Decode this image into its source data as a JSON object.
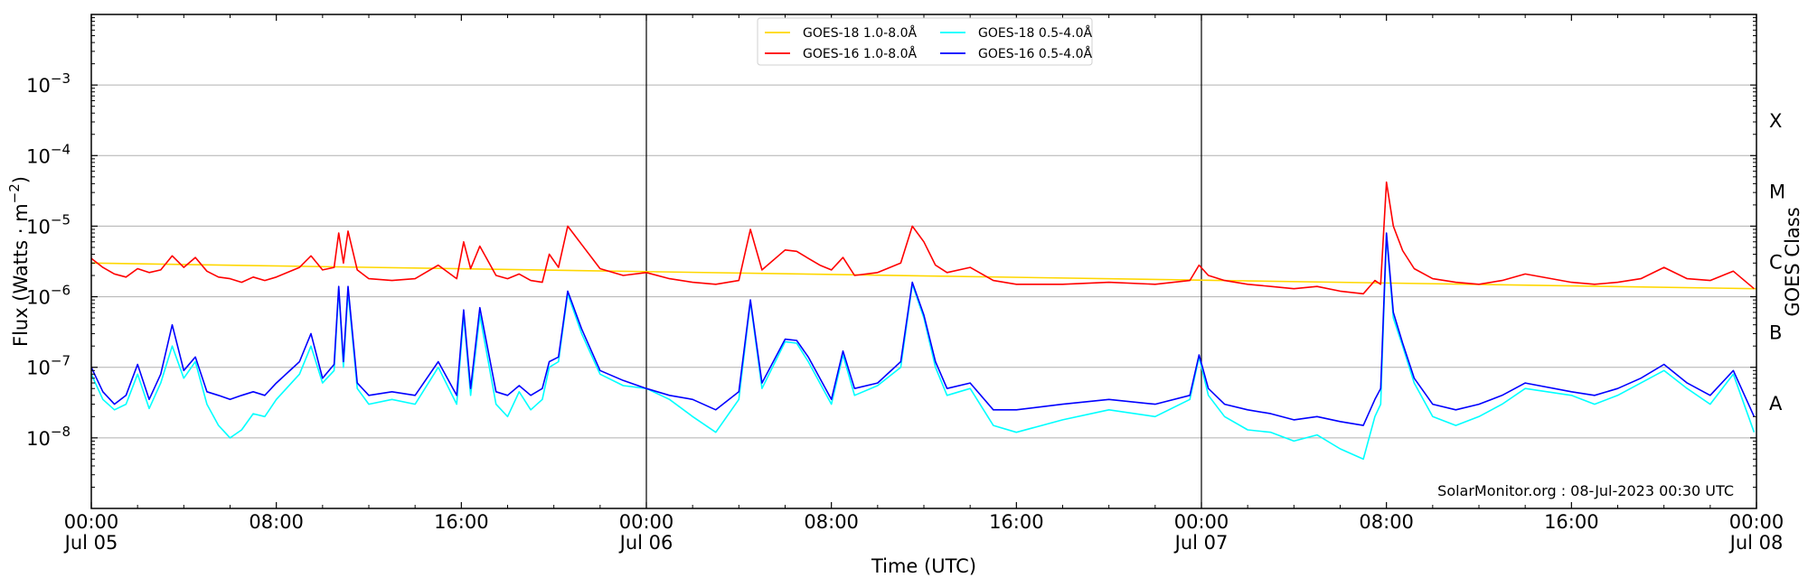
{
  "chart_data": {
    "type": "line",
    "title": "",
    "xlabel": "Time (UTC)",
    "ylabel": "Flux (Watts · m",
    "ylabel_sup": "−2",
    "ylabel_close": ")",
    "y2label": "GOES Class",
    "yscale": "log",
    "xlim": [
      0,
      72
    ],
    "ylim": [
      1e-09,
      0.01
    ],
    "grid": "horizontal",
    "legend_position": "top-center",
    "credit": "SolarMonitor.org : 08-Jul-2023 00:30 UTC",
    "x_ticks": [
      {
        "value": 0,
        "line1": "00:00",
        "line2": "Jul 05"
      },
      {
        "value": 8,
        "line1": "08:00",
        "line2": ""
      },
      {
        "value": 16,
        "line1": "16:00",
        "line2": ""
      },
      {
        "value": 24,
        "line1": "00:00",
        "line2": "Jul 06"
      },
      {
        "value": 32,
        "line1": "08:00",
        "line2": ""
      },
      {
        "value": 40,
        "line1": "16:00",
        "line2": ""
      },
      {
        "value": 48,
        "line1": "00:00",
        "line2": "Jul 07"
      },
      {
        "value": 56,
        "line1": "08:00",
        "line2": ""
      },
      {
        "value": 64,
        "line1": "16:00",
        "line2": ""
      },
      {
        "value": 72,
        "line1": "00:00",
        "line2": "Jul 08"
      }
    ],
    "y_ticks": [
      {
        "value": 1e-08,
        "base": "10",
        "exp": "−8"
      },
      {
        "value": 1e-07,
        "base": "10",
        "exp": "−7"
      },
      {
        "value": 1e-06,
        "base": "10",
        "exp": "−6"
      },
      {
        "value": 1e-05,
        "base": "10",
        "exp": "−5"
      },
      {
        "value": 0.0001,
        "base": "10",
        "exp": "−4"
      },
      {
        "value": 0.001,
        "base": "10",
        "exp": "−3"
      }
    ],
    "day_lines": [
      24,
      48
    ],
    "goes_classes": [
      {
        "label": "A",
        "value": 3.16e-08
      },
      {
        "label": "B",
        "value": 3.16e-07
      },
      {
        "label": "C",
        "value": 3.16e-06
      },
      {
        "label": "M",
        "value": 3.16e-05
      },
      {
        "label": "X",
        "value": 0.000316
      }
    ],
    "series": [
      {
        "name": "GOES-18 1.0-8.0Å",
        "color": "#ffd700",
        "x": [
          0,
          72
        ],
        "y": [
          3e-06,
          1.3e-06
        ]
      },
      {
        "name": "GOES-16 1.0-8.0Å",
        "color": "#ff0000",
        "x": [
          0,
          0.5,
          1,
          1.5,
          2,
          2.5,
          3,
          3.5,
          4,
          4.5,
          5,
          5.5,
          6,
          6.5,
          7,
          7.5,
          8,
          9,
          9.5,
          10,
          10.5,
          10.7,
          10.9,
          11.1,
          11.5,
          12,
          13,
          14,
          15,
          15.8,
          16.1,
          16.4,
          16.8,
          17.5,
          18,
          18.5,
          19,
          19.5,
          19.8,
          20.2,
          20.6,
          21.2,
          22,
          23,
          24,
          25,
          26,
          27,
          28,
          28.5,
          29,
          30,
          30.5,
          31,
          31.5,
          32,
          32.5,
          33,
          34,
          35,
          35.5,
          36,
          36.5,
          37,
          38,
          39,
          40,
          42,
          44,
          46,
          47.5,
          47.9,
          48.3,
          49,
          50,
          51,
          52,
          53,
          54,
          55,
          55.5,
          55.75,
          56,
          56.3,
          56.7,
          57.2,
          58,
          59,
          60,
          61,
          62,
          64,
          65,
          66,
          67,
          68,
          69,
          70,
          71,
          71.9
        ],
        "y": [
          3.5e-06,
          2.6e-06,
          2.1e-06,
          1.9e-06,
          2.5e-06,
          2.2e-06,
          2.4e-06,
          3.8e-06,
          2.6e-06,
          3.6e-06,
          2.3e-06,
          1.9e-06,
          1.8e-06,
          1.6e-06,
          1.9e-06,
          1.7e-06,
          1.9e-06,
          2.6e-06,
          3.8e-06,
          2.4e-06,
          2.6e-06,
          8e-06,
          3e-06,
          8.5e-06,
          2.4e-06,
          1.8e-06,
          1.7e-06,
          1.8e-06,
          2.8e-06,
          1.8e-06,
          6e-06,
          2.5e-06,
          5.2e-06,
          2e-06,
          1.8e-06,
          2.1e-06,
          1.7e-06,
          1.6e-06,
          4e-06,
          2.6e-06,
          1e-05,
          5.5e-06,
          2.5e-06,
          2e-06,
          2.2e-06,
          1.8e-06,
          1.6e-06,
          1.5e-06,
          1.7e-06,
          9e-06,
          2.4e-06,
          4.6e-06,
          4.4e-06,
          3.5e-06,
          2.8e-06,
          2.4e-06,
          3.6e-06,
          2e-06,
          2.2e-06,
          3e-06,
          1e-05,
          6e-06,
          2.8e-06,
          2.2e-06,
          2.6e-06,
          1.7e-06,
          1.5e-06,
          1.5e-06,
          1.6e-06,
          1.5e-06,
          1.7e-06,
          2.8e-06,
          2e-06,
          1.7e-06,
          1.5e-06,
          1.4e-06,
          1.3e-06,
          1.4e-06,
          1.2e-06,
          1.1e-06,
          1.7e-06,
          1.5e-06,
          4.2e-05,
          1e-05,
          4.5e-06,
          2.5e-06,
          1.8e-06,
          1.6e-06,
          1.5e-06,
          1.7e-06,
          2.1e-06,
          1.6e-06,
          1.5e-06,
          1.6e-06,
          1.8e-06,
          2.6e-06,
          1.8e-06,
          1.7e-06,
          2.3e-06,
          1.3e-06
        ]
      },
      {
        "name": "GOES-18 0.5-4.0Å",
        "color": "#00ffff",
        "x": [
          0,
          0.5,
          1,
          1.5,
          2,
          2.5,
          3,
          3.5,
          4,
          4.5,
          5,
          5.5,
          6,
          6.5,
          7,
          7.5,
          8,
          9,
          9.5,
          10,
          10.5,
          10.7,
          10.9,
          11.1,
          11.5,
          12,
          13,
          14,
          15,
          15.8,
          16.1,
          16.4,
          16.8,
          17.5,
          18,
          18.5,
          19,
          19.5,
          19.8,
          20.2,
          20.6,
          21.2,
          22,
          23,
          24,
          25,
          26,
          27,
          28,
          28.5,
          29,
          30,
          30.5,
          31,
          31.5,
          32,
          32.5,
          33,
          34,
          35,
          35.5,
          36,
          36.5,
          37,
          38,
          39,
          40,
          42,
          44,
          46,
          47.5,
          47.9,
          48.3,
          49,
          50,
          51,
          52,
          53,
          54,
          55,
          55.5,
          55.75,
          56,
          56.3,
          56.7,
          57.2,
          58,
          59,
          60,
          61,
          62,
          64,
          65,
          66,
          67,
          68,
          69,
          70,
          71,
          71.9
        ],
        "y": [
          8e-08,
          3.5e-08,
          2.5e-08,
          3e-08,
          8e-08,
          2.6e-08,
          6e-08,
          2e-07,
          7e-08,
          1.2e-07,
          3e-08,
          1.5e-08,
          1e-08,
          1.3e-08,
          2.2e-08,
          2e-08,
          3.5e-08,
          8e-08,
          2e-07,
          6e-08,
          9e-08,
          1.3e-06,
          1e-07,
          1.2e-06,
          5e-08,
          3e-08,
          3.5e-08,
          3e-08,
          1e-07,
          3e-08,
          5.5e-07,
          4e-08,
          5.5e-07,
          3e-08,
          2e-08,
          4.5e-08,
          2.5e-08,
          3.5e-08,
          1e-07,
          1.2e-07,
          1.1e-06,
          3e-07,
          8e-08,
          5.5e-08,
          5e-08,
          3.5e-08,
          2e-08,
          1.2e-08,
          3.5e-08,
          8.5e-07,
          5e-08,
          2.3e-07,
          2.2e-07,
          1.2e-07,
          6e-08,
          3e-08,
          1.5e-07,
          4e-08,
          5.5e-08,
          1e-07,
          1.5e-06,
          5e-07,
          1e-07,
          4e-08,
          5e-08,
          1.5e-08,
          1.2e-08,
          1.8e-08,
          2.5e-08,
          2e-08,
          3.5e-08,
          1.4e-07,
          4e-08,
          2e-08,
          1.3e-08,
          1.2e-08,
          9e-09,
          1.1e-08,
          7e-09,
          5e-09,
          2e-08,
          3e-08,
          7.5e-06,
          5e-07,
          2e-07,
          6e-08,
          2e-08,
          1.5e-08,
          2e-08,
          3e-08,
          5e-08,
          4e-08,
          3e-08,
          4e-08,
          6e-08,
          9e-08,
          5e-08,
          3e-08,
          8e-08,
          1.2e-08
        ]
      },
      {
        "name": "GOES-16 0.5-4.0Å",
        "color": "#0000ff",
        "x": [
          0,
          0.5,
          1,
          1.5,
          2,
          2.5,
          3,
          3.5,
          4,
          4.5,
          5,
          5.5,
          6,
          6.5,
          7,
          7.5,
          8,
          9,
          9.5,
          10,
          10.5,
          10.7,
          10.9,
          11.1,
          11.5,
          12,
          13,
          14,
          15,
          15.8,
          16.1,
          16.4,
          16.8,
          17.5,
          18,
          18.5,
          19,
          19.5,
          19.8,
          20.2,
          20.6,
          21.2,
          22,
          23,
          24,
          25,
          26,
          27,
          28,
          28.5,
          29,
          30,
          30.5,
          31,
          31.5,
          32,
          32.5,
          33,
          34,
          35,
          35.5,
          36,
          36.5,
          37,
          38,
          39,
          40,
          42,
          44,
          46,
          47.5,
          47.9,
          48.3,
          49,
          50,
          51,
          52,
          53,
          54,
          55,
          55.5,
          55.75,
          56,
          56.3,
          56.7,
          57.2,
          58,
          59,
          60,
          61,
          62,
          64,
          65,
          66,
          67,
          68,
          69,
          70,
          71,
          71.9
        ],
        "y": [
          1e-07,
          4.5e-08,
          3e-08,
          4e-08,
          1.1e-07,
          3.5e-08,
          8e-08,
          4e-07,
          9e-08,
          1.4e-07,
          4.5e-08,
          4e-08,
          3.5e-08,
          4e-08,
          4.5e-08,
          4e-08,
          6e-08,
          1.2e-07,
          3e-07,
          7e-08,
          1.1e-07,
          1.4e-06,
          1.2e-07,
          1.4e-06,
          6e-08,
          4e-08,
          4.5e-08,
          4e-08,
          1.2e-07,
          4e-08,
          6.5e-07,
          5e-08,
          7e-07,
          4.5e-08,
          4e-08,
          5.5e-08,
          4e-08,
          5e-08,
          1.2e-07,
          1.4e-07,
          1.2e-06,
          3.5e-07,
          9e-08,
          6.5e-08,
          5e-08,
          4e-08,
          3.5e-08,
          2.5e-08,
          4.5e-08,
          9e-07,
          6e-08,
          2.5e-07,
          2.4e-07,
          1.4e-07,
          7e-08,
          3.5e-08,
          1.7e-07,
          5e-08,
          6e-08,
          1.2e-07,
          1.6e-06,
          5.5e-07,
          1.2e-07,
          5e-08,
          6e-08,
          2.5e-08,
          2.5e-08,
          3e-08,
          3.5e-08,
          3e-08,
          4e-08,
          1.5e-07,
          5e-08,
          3e-08,
          2.5e-08,
          2.2e-08,
          1.8e-08,
          2e-08,
          1.7e-08,
          1.5e-08,
          3.5e-08,
          5e-08,
          8e-06,
          6e-07,
          2.2e-07,
          7e-08,
          3e-08,
          2.5e-08,
          3e-08,
          4e-08,
          6e-08,
          4.5e-08,
          4e-08,
          5e-08,
          7e-08,
          1.1e-07,
          6e-08,
          4e-08,
          9e-08,
          2e-08
        ]
      }
    ]
  }
}
